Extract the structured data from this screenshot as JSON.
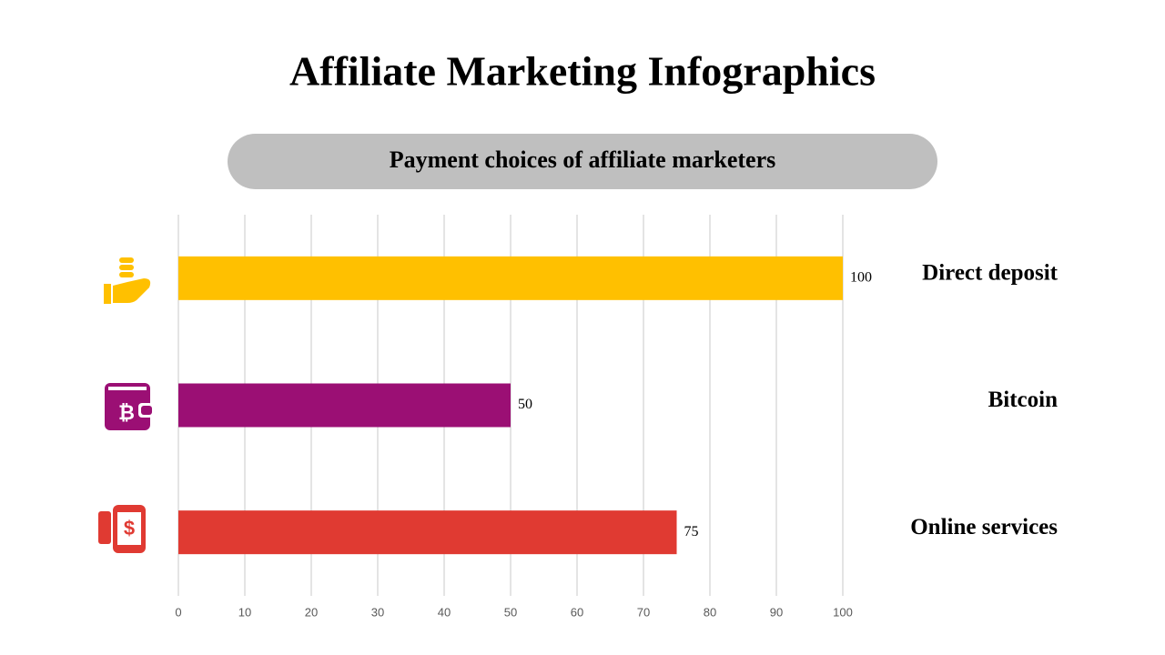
{
  "chart_data": {
    "type": "bar",
    "orientation": "horizontal",
    "title": "Affiliate Marketing Infographics",
    "subtitle": "Payment choices of affiliate marketers",
    "categories": [
      "Direct deposit",
      "Bitcoin",
      "Online services"
    ],
    "values": [
      100,
      50,
      75
    ],
    "colors": [
      "#ffc000",
      "#9b0f74",
      "#e03a32"
    ],
    "xlim": [
      0,
      100
    ],
    "xticks": [
      0,
      10,
      20,
      30,
      40,
      50,
      60,
      70,
      80,
      90,
      100
    ],
    "grid": true
  }
}
